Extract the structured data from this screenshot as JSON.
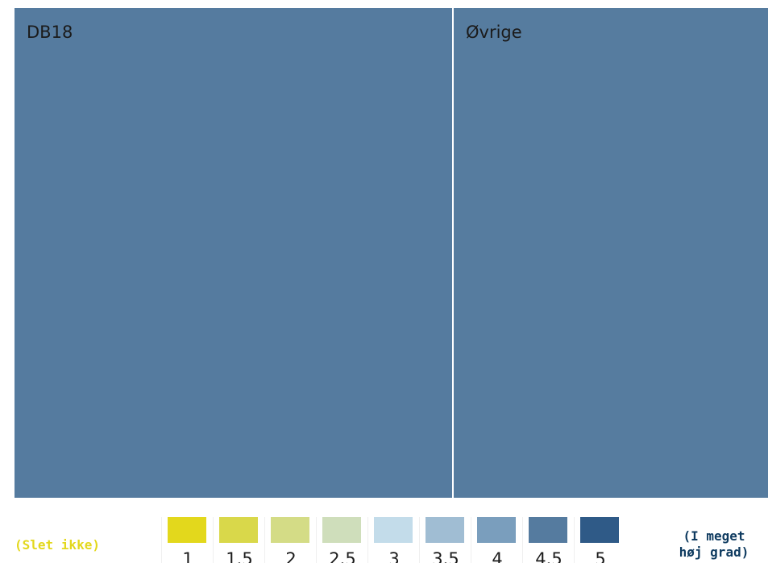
{
  "chart_data": {
    "type": "treemap",
    "tiles": [
      {
        "label": "DB18",
        "color": "#557b9f",
        "size": 543
      },
      {
        "label": "Øvrige",
        "color": "#567c9f",
        "size": 390
      }
    ],
    "legend": {
      "low_label": "(Slet ikke)",
      "low_color": "#e3d81c",
      "high_label_lines": [
        "(I meget",
        "høj grad)"
      ],
      "high_color": "#0e3a5f",
      "ticks": [
        "1",
        "1.5",
        "2",
        "2.5",
        "3",
        "3.5",
        "4",
        "4.5",
        "5"
      ],
      "colors": [
        "#e3d81c",
        "#d9d84a",
        "#d4dc86",
        "#cfdebb",
        "#c3dcea",
        "#a0bdd3",
        "#7a9ebd",
        "#557b9f",
        "#2f5a87"
      ]
    }
  }
}
